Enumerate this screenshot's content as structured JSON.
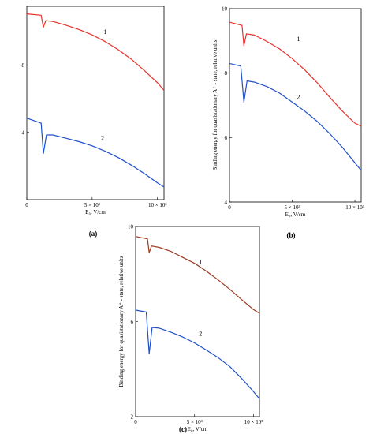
{
  "chart_data": [
    {
      "panel_label": "(a)",
      "type": "line",
      "xlabel": "E₀, V/cm",
      "ylabel": "",
      "xlim": [
        0,
        10500
      ],
      "ylim": [
        0,
        11.5
      ],
      "x_ticks": [
        {
          "value": 0,
          "label": "0"
        },
        {
          "value": 5000,
          "label": "5 × 10³"
        },
        {
          "value": 10000,
          "label": "10 × 10³"
        }
      ],
      "y_ticks": [
        {
          "value": 4,
          "label": "4"
        },
        {
          "value": 8,
          "label": "8"
        }
      ],
      "dip_x": 1270,
      "series": [
        {
          "name": "1",
          "color": "#e8312c",
          "label_at": [
            6000,
            9.85
          ],
          "points": [
            [
              0,
              11.05
            ],
            [
              1100,
              10.97
            ],
            [
              1270,
              10.25
            ],
            [
              1450,
              10.65
            ],
            [
              2000,
              10.6
            ],
            [
              3000,
              10.38
            ],
            [
              4000,
              10.12
            ],
            [
              5000,
              9.8
            ],
            [
              6000,
              9.4
            ],
            [
              7000,
              8.92
            ],
            [
              8000,
              8.35
            ],
            [
              9000,
              7.68
            ],
            [
              10000,
              6.95
            ],
            [
              10500,
              6.5
            ]
          ]
        },
        {
          "name": "2",
          "color": "#2050c8",
          "label_at": [
            5800,
            3.55
          ],
          "points": [
            [
              0,
              4.85
            ],
            [
              1100,
              4.55
            ],
            [
              1270,
              2.75
            ],
            [
              1500,
              3.85
            ],
            [
              2000,
              3.85
            ],
            [
              3000,
              3.65
            ],
            [
              4000,
              3.45
            ],
            [
              5000,
              3.2
            ],
            [
              6000,
              2.88
            ],
            [
              7000,
              2.5
            ],
            [
              8000,
              2.05
            ],
            [
              9000,
              1.55
            ],
            [
              10000,
              1.0
            ],
            [
              10500,
              0.75
            ]
          ]
        }
      ]
    },
    {
      "panel_label": "(b)",
      "type": "line",
      "xlabel": "E₀, V/cm",
      "ylabel": "Binding energy for quasistationary A⁺ - state, relative units",
      "xlim": [
        0,
        10500
      ],
      "ylim": [
        4,
        10
      ],
      "x_ticks": [
        {
          "value": 0,
          "label": "0"
        },
        {
          "value": 5000,
          "label": "5 × 10³"
        },
        {
          "value": 10000,
          "label": "10 × 10³"
        }
      ],
      "y_ticks": [
        {
          "value": 4,
          "label": "4"
        },
        {
          "value": 6,
          "label": "6"
        },
        {
          "value": 8,
          "label": "8"
        },
        {
          "value": 10,
          "label": "10"
        }
      ],
      "dip_x": 1150,
      "series": [
        {
          "name": "1",
          "color": "#e8312c",
          "label_at": [
            5500,
            9.0
          ],
          "points": [
            [
              0,
              9.58
            ],
            [
              1000,
              9.48
            ],
            [
              1150,
              8.85
            ],
            [
              1350,
              9.22
            ],
            [
              2000,
              9.18
            ],
            [
              3000,
              8.98
            ],
            [
              4000,
              8.75
            ],
            [
              5000,
              8.45
            ],
            [
              6000,
              8.1
            ],
            [
              7000,
              7.7
            ],
            [
              8000,
              7.25
            ],
            [
              9000,
              6.82
            ],
            [
              10000,
              6.45
            ],
            [
              10500,
              6.35
            ]
          ]
        },
        {
          "name": "2",
          "color": "#2050c8",
          "label_at": [
            5500,
            7.2
          ],
          "points": [
            [
              0,
              8.3
            ],
            [
              900,
              8.22
            ],
            [
              1150,
              7.1
            ],
            [
              1400,
              7.76
            ],
            [
              2000,
              7.72
            ],
            [
              3000,
              7.58
            ],
            [
              4000,
              7.38
            ],
            [
              5000,
              7.1
            ],
            [
              6000,
              6.82
            ],
            [
              7000,
              6.5
            ],
            [
              8000,
              6.12
            ],
            [
              9000,
              5.7
            ],
            [
              10000,
              5.22
            ],
            [
              10500,
              4.98
            ]
          ]
        }
      ]
    },
    {
      "panel_label": "(c)",
      "type": "line",
      "xlabel": "E₀, V/cm",
      "ylabel": "Binding energy for quasistationary A⁺ - state, relative units",
      "xlim": [
        0,
        10500
      ],
      "ylim": [
        2,
        10
      ],
      "x_ticks": [
        {
          "value": 0,
          "label": "0"
        },
        {
          "value": 5000,
          "label": "5 × 10³"
        },
        {
          "value": 10000,
          "label": "10 × 10³"
        }
      ],
      "y_ticks": [
        {
          "value": 2,
          "label": "2"
        },
        {
          "value": 6,
          "label": "6"
        },
        {
          "value": 10,
          "label": "10"
        }
      ],
      "dip_x": 1150,
      "series": [
        {
          "name": "1",
          "color": "#9a3b22",
          "label_at": [
            5500,
            8.4
          ],
          "points": [
            [
              0,
              9.58
            ],
            [
              1000,
              9.48
            ],
            [
              1150,
              8.9
            ],
            [
              1350,
              9.18
            ],
            [
              2000,
              9.12
            ],
            [
              3000,
              8.95
            ],
            [
              4000,
              8.7
            ],
            [
              5000,
              8.45
            ],
            [
              6000,
              8.12
            ],
            [
              7000,
              7.75
            ],
            [
              8000,
              7.35
            ],
            [
              9000,
              6.92
            ],
            [
              10000,
              6.5
            ],
            [
              10500,
              6.35
            ]
          ]
        },
        {
          "name": "2",
          "color": "#2050c8",
          "label_at": [
            5500,
            5.4
          ],
          "points": [
            [
              0,
              6.48
            ],
            [
              900,
              6.4
            ],
            [
              1150,
              4.65
            ],
            [
              1400,
              5.75
            ],
            [
              2000,
              5.72
            ],
            [
              3000,
              5.55
            ],
            [
              4000,
              5.35
            ],
            [
              5000,
              5.1
            ],
            [
              6000,
              4.8
            ],
            [
              7000,
              4.48
            ],
            [
              8000,
              4.1
            ],
            [
              9000,
              3.6
            ],
            [
              10000,
              3.05
            ],
            [
              10500,
              2.75
            ]
          ]
        }
      ]
    }
  ]
}
